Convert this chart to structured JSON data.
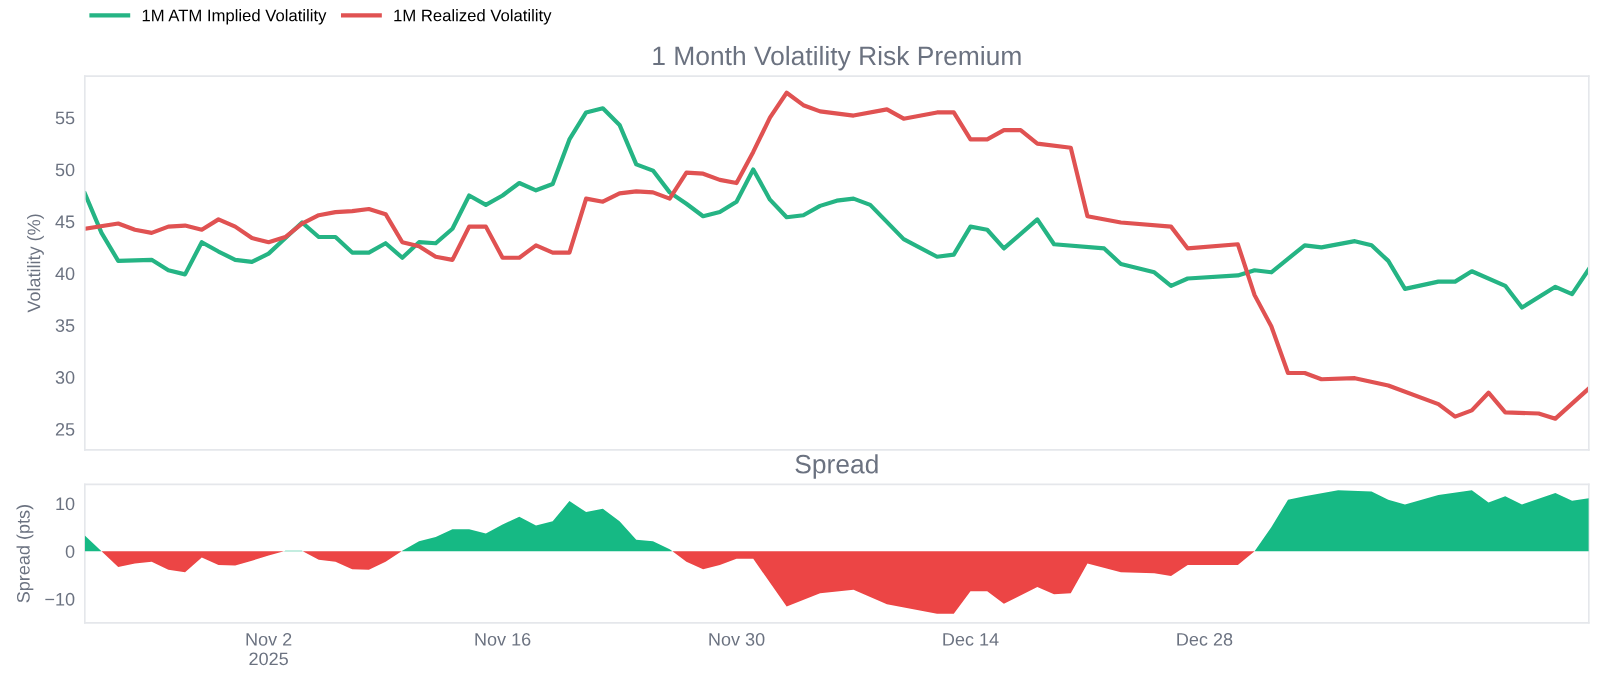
{
  "chart_data": [
    {
      "type": "line",
      "title": "1 Month Volatility Risk Premium",
      "ylabel": "Volatility (%)",
      "xlim": [
        "2025-10-22",
        "2026-01-20"
      ],
      "ylim": [
        23,
        59
      ],
      "yticks": [
        25,
        30,
        35,
        40,
        45,
        50,
        55
      ],
      "tick_labels": "y",
      "grid": false,
      "legend": "top left",
      "line_style": "solid",
      "marker": "none",
      "series": [
        {
          "name": "1M ATM Implied Volatility",
          "color": "#25b484",
          "x": [
            "2025-10-22",
            "2025-10-23",
            "2025-10-24",
            "2025-10-26",
            "2025-10-27",
            "2025-10-28",
            "2025-10-29",
            "2025-10-30",
            "2025-10-31",
            "2025-11-01",
            "2025-11-02",
            "2025-11-04",
            "2025-11-05",
            "2025-11-06",
            "2025-11-07",
            "2025-11-08",
            "2025-11-09",
            "2025-11-10",
            "2025-11-11",
            "2025-11-12",
            "2025-11-13",
            "2025-11-14",
            "2025-11-15",
            "2025-11-16",
            "2025-11-17",
            "2025-11-18",
            "2025-11-19",
            "2025-11-20",
            "2025-11-21",
            "2025-11-22",
            "2025-11-23",
            "2025-11-24",
            "2025-11-25",
            "2025-11-26",
            "2025-11-27",
            "2025-11-28",
            "2025-11-29",
            "2025-11-30",
            "2025-12-01",
            "2025-12-02",
            "2025-12-03",
            "2025-12-04",
            "2025-12-05",
            "2025-12-06",
            "2025-12-07",
            "2025-12-08",
            "2025-12-10",
            "2025-12-12",
            "2025-12-13",
            "2025-12-14",
            "2025-12-15",
            "2025-12-16",
            "2025-12-18",
            "2025-12-19",
            "2025-12-22",
            "2025-12-23",
            "2025-12-25",
            "2025-12-26",
            "2025-12-27",
            "2025-12-30",
            "2025-12-31",
            "2026-01-01",
            "2026-01-03",
            "2026-01-04",
            "2026-01-06",
            "2026-01-07",
            "2026-01-08",
            "2026-01-09",
            "2026-01-11",
            "2026-01-12",
            "2026-01-13",
            "2026-01-15",
            "2026-01-16",
            "2026-01-18",
            "2026-01-19",
            "2026-01-20"
          ],
          "values": [
            47.7,
            43.9,
            41.2,
            41.3,
            40.3,
            39.9,
            43.0,
            42.1,
            41.3,
            41.1,
            41.9,
            44.9,
            43.5,
            43.5,
            42.0,
            42.0,
            42.9,
            41.5,
            43.0,
            42.9,
            44.3,
            47.5,
            46.6,
            47.5,
            48.7,
            48.0,
            48.6,
            52.9,
            55.5,
            55.9,
            54.3,
            50.5,
            49.9,
            47.8,
            46.7,
            45.5,
            45.9,
            46.9,
            50.0,
            47.1,
            45.4,
            45.6,
            46.5,
            47.0,
            47.2,
            46.6,
            43.3,
            41.6,
            41.8,
            44.5,
            44.2,
            42.4,
            45.2,
            42.8,
            42.4,
            40.9,
            40.1,
            38.8,
            39.5,
            39.8,
            40.3,
            40.1,
            42.7,
            42.5,
            43.1,
            42.7,
            41.2,
            38.5,
            39.2,
            39.2,
            40.2,
            38.8,
            36.7,
            38.7,
            38.0,
            40.4
          ]
        },
        {
          "name": "1M Realized Volatility",
          "color": "#e05252",
          "x": [
            "2025-10-22",
            "2025-10-24",
            "2025-10-25",
            "2025-10-26",
            "2025-10-27",
            "2025-10-28",
            "2025-10-29",
            "2025-10-30",
            "2025-10-31",
            "2025-11-01",
            "2025-11-02",
            "2025-11-03",
            "2025-11-04",
            "2025-11-05",
            "2025-11-06",
            "2025-11-07",
            "2025-11-08",
            "2025-11-09",
            "2025-11-10",
            "2025-11-11",
            "2025-11-12",
            "2025-11-13",
            "2025-11-14",
            "2025-11-15",
            "2025-11-16",
            "2025-11-17",
            "2025-11-18",
            "2025-11-19",
            "2025-11-20",
            "2025-11-21",
            "2025-11-22",
            "2025-11-23",
            "2025-11-24",
            "2025-11-25",
            "2025-11-26",
            "2025-11-27",
            "2025-11-28",
            "2025-11-29",
            "2025-11-30",
            "2025-12-01",
            "2025-12-02",
            "2025-12-03",
            "2025-12-04",
            "2025-12-05",
            "2025-12-07",
            "2025-12-09",
            "2025-12-10",
            "2025-12-12",
            "2025-12-13",
            "2025-12-14",
            "2025-12-15",
            "2025-12-16",
            "2025-12-17",
            "2025-12-18",
            "2025-12-20",
            "2025-12-21",
            "2025-12-23",
            "2025-12-26",
            "2025-12-27",
            "2025-12-30",
            "2025-12-31",
            "2026-01-01",
            "2026-01-02",
            "2026-01-03",
            "2026-01-04",
            "2026-01-06",
            "2026-01-08",
            "2026-01-11",
            "2026-01-12",
            "2026-01-13",
            "2026-01-14",
            "2026-01-15",
            "2026-01-17",
            "2026-01-18",
            "2026-01-20"
          ],
          "values": [
            44.3,
            44.8,
            44.2,
            43.9,
            44.5,
            44.6,
            44.2,
            45.2,
            44.5,
            43.4,
            43.0,
            43.5,
            44.8,
            45.6,
            45.9,
            46.0,
            46.2,
            45.7,
            43.0,
            42.6,
            41.6,
            41.3,
            44.5,
            44.5,
            41.5,
            41.5,
            42.7,
            42.0,
            42.0,
            47.2,
            46.9,
            47.7,
            47.9,
            47.8,
            47.2,
            49.7,
            49.6,
            49.0,
            48.7,
            51.7,
            55.0,
            57.4,
            56.2,
            55.6,
            55.2,
            55.8,
            54.9,
            55.5,
            55.5,
            52.9,
            52.9,
            53.8,
            53.8,
            52.5,
            52.1,
            45.5,
            44.9,
            44.5,
            42.4,
            42.8,
            37.9,
            34.9,
            30.4,
            30.4,
            29.8,
            29.9,
            29.2,
            27.4,
            26.2,
            26.8,
            28.5,
            26.6,
            26.5,
            26.0,
            28.9
          ]
        }
      ]
    },
    {
      "type": "area",
      "title": "Spread",
      "ylabel": "Spread (pts)",
      "xlim": [
        "2025-10-22",
        "2026-01-20"
      ],
      "ylim": [
        -15,
        14
      ],
      "yticks": [
        {
          "value": -10,
          "label": "−10"
        },
        0,
        10
      ],
      "xticks": [
        {
          "value": "2025-11-02",
          "label": "Nov 2\n2025"
        },
        {
          "value": "2025-11-16",
          "label": "Nov 16"
        },
        {
          "value": "2025-11-30",
          "label": "Nov 30"
        },
        {
          "value": "2025-12-14",
          "label": "Dec 14"
        },
        {
          "value": "2025-12-28",
          "label": "Dec 28"
        }
      ],
      "grid": false,
      "legend": false,
      "series": [
        {
          "color": "#16b984",
          "x": [
            "2025-10-22",
            "2025-10-23",
            "2025-10-28",
            "2025-11-02T22:00",
            "2025-11-03",
            "2025-11-04",
            "2025-11-04T01:00",
            "2025-11-07",
            "2025-11-09T23:00",
            "2025-11-10",
            "2025-11-11",
            "2025-11-12",
            "2025-11-13",
            "2025-11-14",
            "2025-11-15",
            "2025-11-16",
            "2025-11-17",
            "2025-11-18",
            "2025-11-19",
            "2025-11-20",
            "2025-11-21",
            "2025-11-22",
            "2025-11-23",
            "2025-11-24",
            "2025-11-25",
            "2025-11-26",
            "2025-11-26T04:00",
            "2025-12-15",
            "2025-12-31",
            "2026-01-01",
            "2026-01-02",
            "2026-01-03",
            "2026-01-05",
            "2026-01-07",
            "2026-01-08",
            "2026-01-09",
            "2026-01-11",
            "2026-01-13",
            "2026-01-14",
            "2026-01-15",
            "2026-01-16",
            "2026-01-18",
            "2026-01-19",
            "2026-01-20"
          ],
          "values": [
            3.3,
            0,
            null,
            0,
            0.1,
            0.1,
            0,
            null,
            0,
            0.1,
            2.1,
            3.0,
            4.6,
            4.6,
            3.7,
            5.6,
            7.2,
            5.4,
            6.3,
            10.5,
            8.2,
            8.9,
            6.3,
            2.4,
            2.1,
            0.4,
            0,
            null,
            0,
            5.0,
            10.8,
            11.5,
            12.8,
            12.5,
            10.8,
            9.8,
            11.8,
            12.8,
            10.2,
            11.5,
            9.8,
            12.2,
            10.6,
            11.1
          ]
        },
        {
          "color": "#ec4545",
          "x": [
            "2025-10-23",
            "2025-10-24",
            "2025-10-25",
            "2025-10-26",
            "2025-10-27",
            "2025-10-28",
            "2025-10-29",
            "2025-10-30",
            "2025-10-31",
            "2025-11-01",
            "2025-11-02",
            "2025-11-02T22:00",
            "2025-11-03T12:00",
            "2025-11-04T01:00",
            "2025-11-05",
            "2025-11-06",
            "2025-11-07",
            "2025-11-08",
            "2025-11-09",
            "2025-11-09T23:00",
            "2025-11-18",
            "2025-11-26T04:00",
            "2025-11-27",
            "2025-11-28",
            "2025-11-29",
            "2025-11-30",
            "2025-12-01",
            "2025-12-03",
            "2025-12-05",
            "2025-12-07",
            "2025-12-09",
            "2025-12-12",
            "2025-12-13",
            "2025-12-14",
            "2025-12-15",
            "2025-12-16",
            "2025-12-18",
            "2025-12-19",
            "2025-12-20",
            "2025-12-21",
            "2025-12-23",
            "2025-12-25",
            "2025-12-26",
            "2025-12-27",
            "2025-12-30",
            "2025-12-31"
          ],
          "values": [
            0,
            -3.3,
            -2.6,
            -2.2,
            -3.9,
            -4.4,
            -1.3,
            -2.9,
            -3.0,
            -2.0,
            -0.9,
            0,
            null,
            0,
            -1.8,
            -2.2,
            -3.8,
            -3.9,
            -2.2,
            0,
            null,
            0,
            -2.2,
            -3.8,
            -2.9,
            -1.6,
            -1.6,
            -11.6,
            -8.8,
            -8.1,
            -11.1,
            -13.1,
            -13.1,
            -8.4,
            -8.4,
            -11.0,
            -7.5,
            -9.0,
            -8.8,
            -2.6,
            -4.4,
            -4.6,
            -5.2,
            -2.9,
            -2.9,
            0
          ]
        }
      ]
    }
  ]
}
